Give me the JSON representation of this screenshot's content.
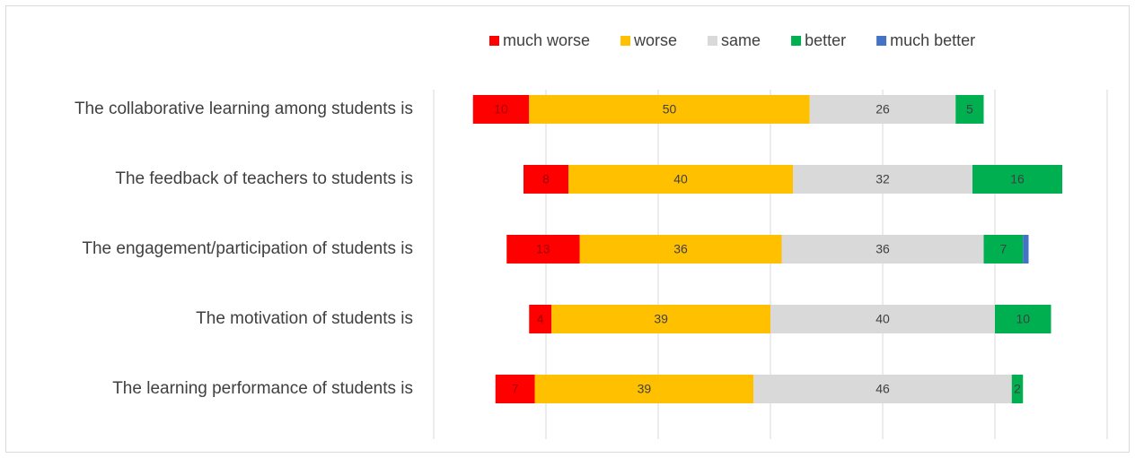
{
  "chart_data": {
    "type": "diverging_bar",
    "categories": [
      "The collaborative learning among students is",
      "The feedback of teachers to students is",
      "The engagement/participation of students is",
      "The motivation of students is",
      "The learning performance of students is"
    ],
    "series": [
      {
        "name": "much worse",
        "color": "#ff0000",
        "values": [
          10,
          8,
          13,
          4,
          7
        ]
      },
      {
        "name": "worse",
        "color": "#ffc000",
        "values": [
          50,
          40,
          36,
          39,
          39
        ]
      },
      {
        "name": "same",
        "color": "#d9d9d9",
        "values": [
          26,
          32,
          36,
          40,
          46
        ]
      },
      {
        "name": "better",
        "color": "#00b050",
        "values": [
          5,
          16,
          7,
          10,
          2
        ]
      },
      {
        "name": "much better",
        "color": "#4472c4",
        "values": [
          0,
          0,
          1,
          0,
          0
        ]
      }
    ],
    "neutral_series": "same",
    "xlim": [
      -80,
      40
    ],
    "xticks": [
      -80,
      -60,
      -40,
      -20,
      0,
      20,
      40
    ],
    "grid": true,
    "legend": "top"
  }
}
